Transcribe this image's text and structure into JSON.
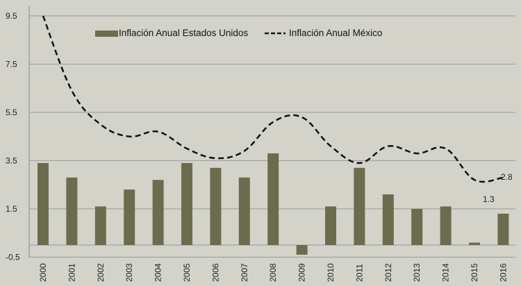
{
  "chart_data": {
    "type": "bar+line",
    "categories": [
      "2000",
      "2001",
      "2002",
      "2003",
      "2004",
      "2005",
      "2006",
      "2007",
      "2008",
      "2009",
      "2010",
      "2011",
      "2012",
      "2013",
      "2014",
      "2015",
      "2016"
    ],
    "series": [
      {
        "name": "Inflación Anual Estados Unidos",
        "type": "bar",
        "color": "#6b6b4e",
        "values": [
          3.4,
          2.8,
          1.6,
          2.3,
          2.7,
          3.4,
          3.2,
          2.8,
          3.8,
          -0.4,
          1.6,
          3.2,
          2.1,
          1.5,
          1.6,
          0.1,
          1.3
        ]
      },
      {
        "name": "Inflación Anual México",
        "type": "line",
        "style": "dashed",
        "color": "#111111",
        "values": [
          9.5,
          6.4,
          5.0,
          4.5,
          4.7,
          4.0,
          3.6,
          3.9,
          5.1,
          5.3,
          4.1,
          3.4,
          4.1,
          3.8,
          4.0,
          2.7,
          2.8
        ]
      }
    ],
    "data_labels": [
      {
        "series": "Inflación Anual México",
        "category": "2016",
        "text": "2.8"
      },
      {
        "series": "Inflación Anual Estados Unidos",
        "category": "2016",
        "text": "1.3"
      }
    ],
    "yticks": [
      "9.5",
      "7.5",
      "5.5",
      "3.5",
      "1.5",
      "-0.5"
    ],
    "ylim": [
      -0.5,
      9.5
    ],
    "grid": true,
    "legend_position": "top"
  }
}
